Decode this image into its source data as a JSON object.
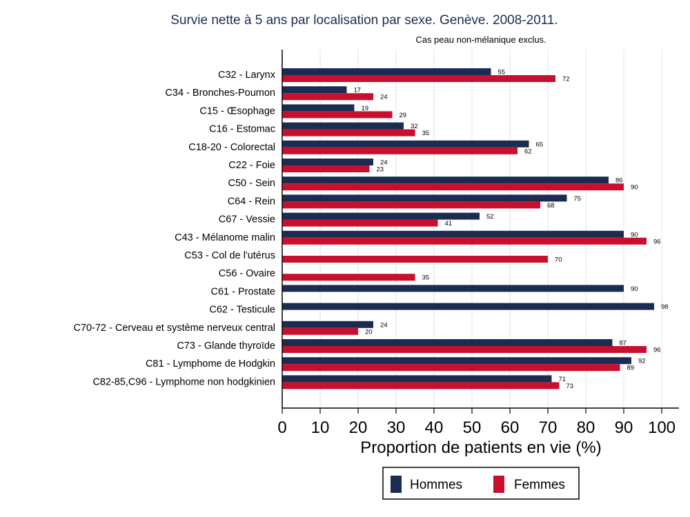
{
  "chart_data": {
    "type": "bar",
    "orientation": "horizontal",
    "title": "Survie nette à 5 ans par localisation par sexe. Genève. 2008-2011.",
    "subtitle": "Cas peau non-mélanique exclus.",
    "xlabel": "Proportion de patients en vie (%)",
    "ylabel": "",
    "xlim": [
      0,
      100
    ],
    "xticks": [
      "0",
      "10",
      "20",
      "30",
      "40",
      "50",
      "60",
      "70",
      "80",
      "90",
      "100"
    ],
    "grid": true,
    "legend_position": "bottom",
    "categories": [
      "C32 - Larynx",
      "C34 - Bronches-Poumon",
      "C15 - Œsophage",
      "C16 - Estomac",
      "C18-20 - Colorectal",
      "C22 - Foie",
      "C50 - Sein",
      "C64 - Rein",
      "C67 - Vessie",
      "C43 - Mélanome malin",
      "C53 - Col de l'utérus",
      "C56 - Ovaire",
      "C61 - Prostate",
      "C62 - Testicule",
      "C70-72 - Cerveau et système nerveux central",
      "C73 - Glande thyroïde",
      "C81 - Lymphome de Hodgkin",
      "C82-85,C96 - Lymphome non hodgkinien"
    ],
    "series": [
      {
        "name": "Hommes",
        "color": "#1b2c50",
        "values": [
          55,
          17,
          19,
          32,
          65,
          24,
          86,
          75,
          52,
          90,
          null,
          null,
          90,
          98,
          24,
          87,
          92,
          71
        ]
      },
      {
        "name": "Femmes",
        "color": "#c8102e",
        "values": [
          72,
          24,
          29,
          35,
          62,
          23,
          90,
          68,
          41,
          96,
          70,
          35,
          null,
          null,
          20,
          96,
          89,
          73
        ]
      }
    ]
  }
}
